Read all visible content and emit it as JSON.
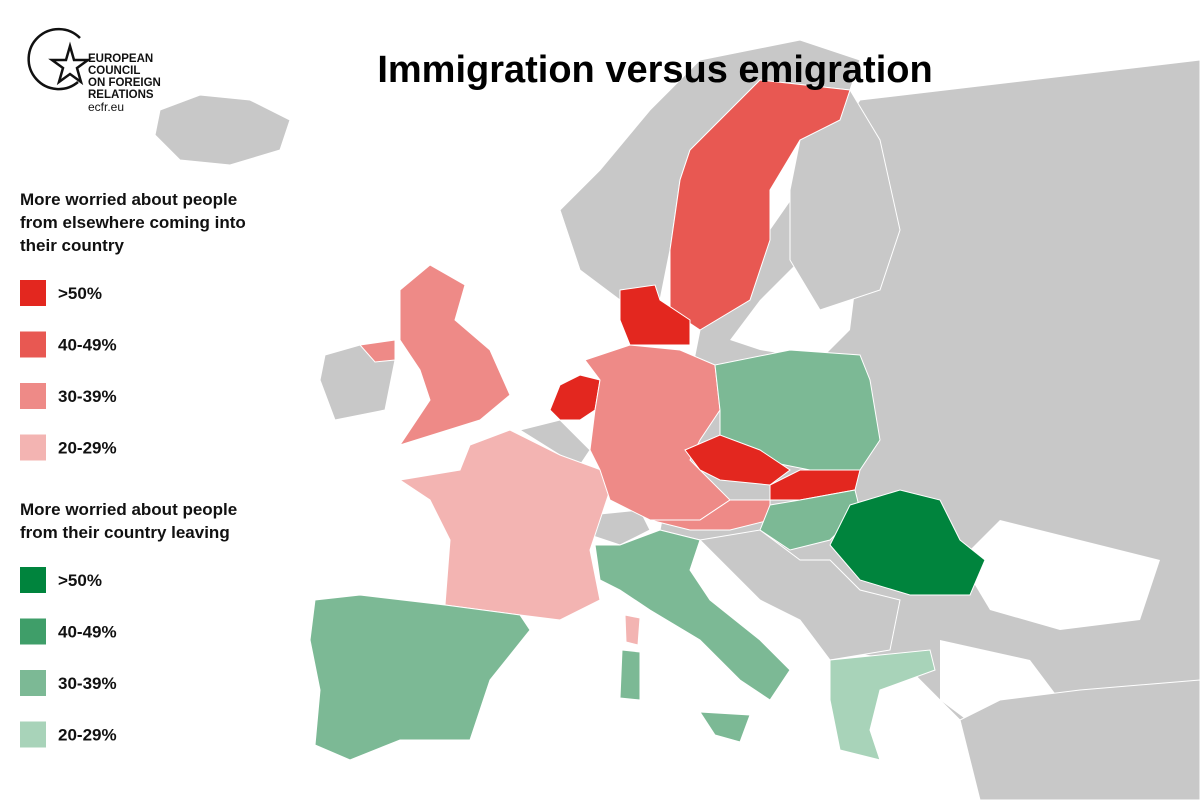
{
  "logo": {
    "lines": [
      "EUROPEAN",
      "COUNCIL",
      "ON FOREIGN",
      "RELATIONS"
    ],
    "url": "ecfr.eu"
  },
  "title": "Immigration versus emigration",
  "legend": [
    {
      "heading": [
        "More worried about people",
        "from elsewhere coming into",
        "their country"
      ],
      "items": [
        {
          "label": ">50%",
          "color": "#e3271f"
        },
        {
          "label": "40-49%",
          "color": "#e85852"
        },
        {
          "label": "30-39%",
          "color": "#ee8a87"
        },
        {
          "label": "20-29%",
          "color": "#f3b4b2"
        }
      ]
    },
    {
      "heading": [
        "More worried about people",
        "from their country leaving"
      ],
      "items": [
        {
          "label": ">50%",
          "color": "#00843d"
        },
        {
          "label": "40-49%",
          "color": "#3f9e69"
        },
        {
          "label": "30-39%",
          "color": "#7cb995"
        },
        {
          "label": "20-29%",
          "color": "#a8d3b9"
        }
      ]
    }
  ]
}
